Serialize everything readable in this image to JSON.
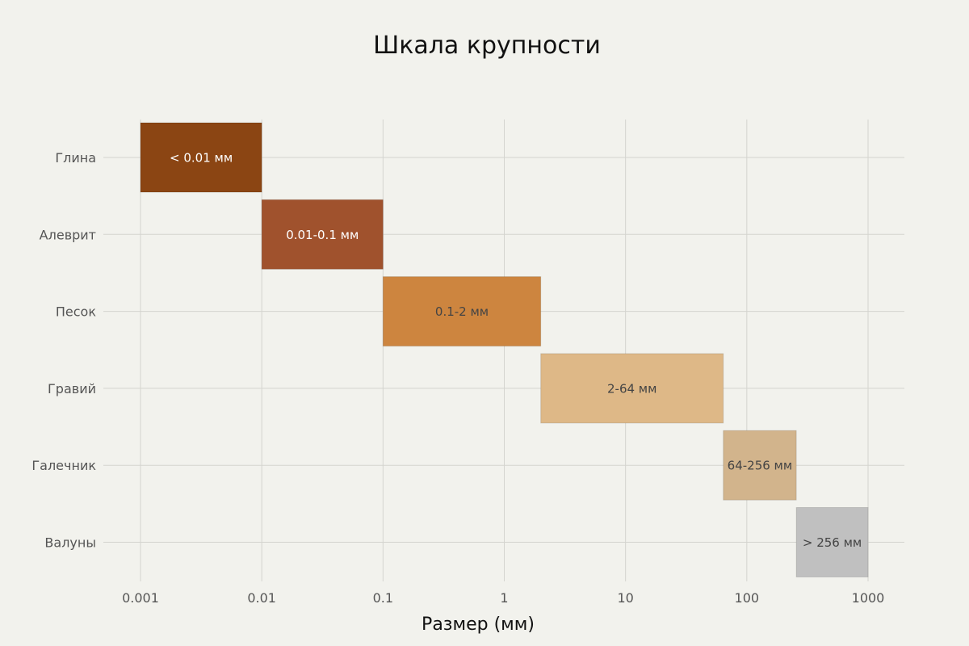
{
  "chart_data": {
    "type": "bar",
    "orientation": "horizontal",
    "title": "Шкала крупности",
    "xlabel": "Размер (мм)",
    "ylabel": "",
    "x_scale": "log",
    "xlim": [
      0.001,
      1000
    ],
    "x_ticks": [
      {
        "value": 0.001,
        "label": "0.001"
      },
      {
        "value": 0.01,
        "label": "0.01"
      },
      {
        "value": 0.1,
        "label": "0.1"
      },
      {
        "value": 1,
        "label": "1"
      },
      {
        "value": 10,
        "label": "10"
      },
      {
        "value": 100,
        "label": "100"
      },
      {
        "value": 1000,
        "label": "1000"
      }
    ],
    "grid": true,
    "categories": [
      "Глина",
      "Алеврит",
      "Песок",
      "Гравий",
      "Галечник",
      "Валуны"
    ],
    "ranges": [
      {
        "category": "Глина",
        "start": 0.001,
        "end": 0.01,
        "label": "< 0.01 мм",
        "color": "#8b4513",
        "label_color": "#ffffff"
      },
      {
        "category": "Алеврит",
        "start": 0.01,
        "end": 0.1,
        "label": "0.01-0.1 мм",
        "color": "#a0522d",
        "label_color": "#ffffff"
      },
      {
        "category": "Песок",
        "start": 0.1,
        "end": 2,
        "label": "0.1-2 мм",
        "color": "#cd853f",
        "label_color": "#444444"
      },
      {
        "category": "Гравий",
        "start": 2,
        "end": 64,
        "label": "2-64 мм",
        "color": "#deb887",
        "label_color": "#444444"
      },
      {
        "category": "Галечник",
        "start": 64,
        "end": 256,
        "label": "64-256 мм",
        "color": "#d2b48c",
        "label_color": "#444444"
      },
      {
        "category": "Валуны",
        "start": 256,
        "end": 1000,
        "label": "> 256 мм",
        "color": "#c0c0c0",
        "label_color": "#444444"
      }
    ]
  }
}
